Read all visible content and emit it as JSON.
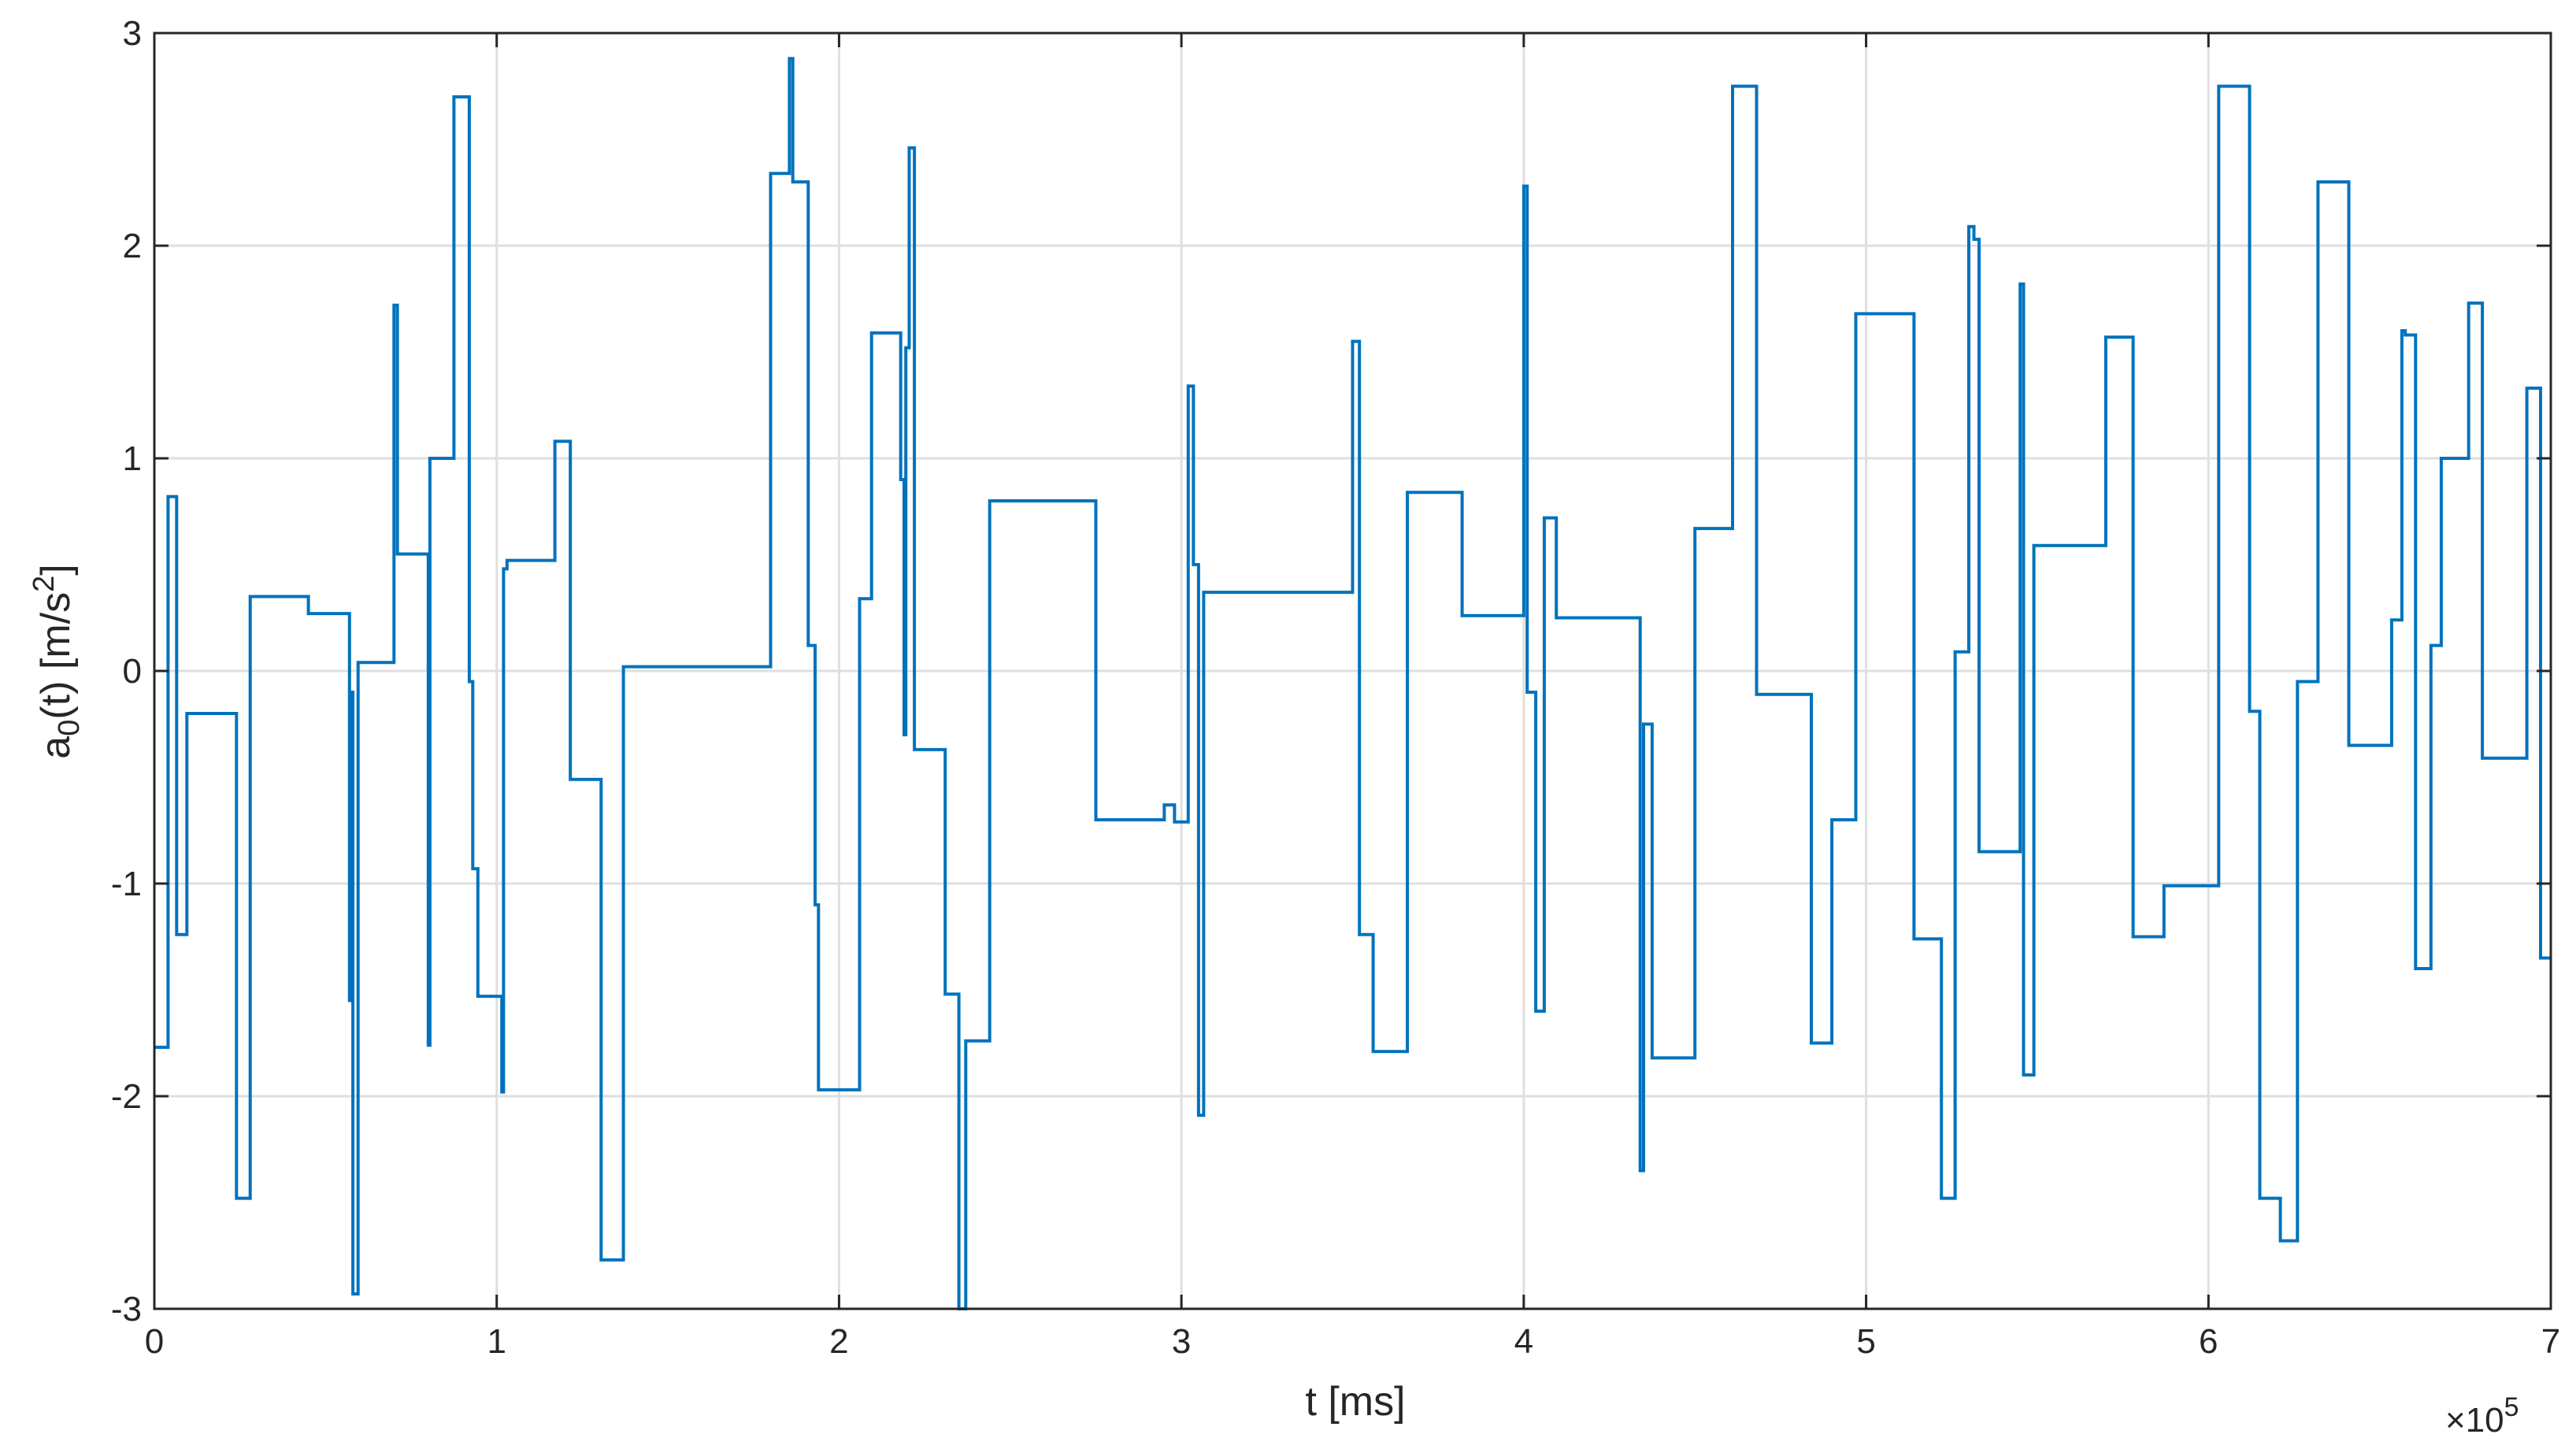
{
  "chart_data": {
    "type": "line",
    "step": true,
    "title": "",
    "xlabel": "t [ms]",
    "ylabel": "a",
    "ylabel_sub": "0",
    "ylabel_rest": "(t) [m/s",
    "ylabel_sup": "2",
    "ylabel_end": "]",
    "x_exponent_times": "×10",
    "x_exponent_power": "5",
    "xlim": [
      0,
      700000
    ],
    "ylim": [
      -3,
      3
    ],
    "grid": true,
    "legend": "none",
    "line_color": "#0072BD",
    "x_ticks": [
      0,
      100000,
      200000,
      300000,
      400000,
      500000,
      600000,
      700000
    ],
    "x_tick_labels": [
      "0",
      "1",
      "2",
      "3",
      "4",
      "5",
      "6",
      "7"
    ],
    "y_ticks": [
      -3,
      -2,
      -1,
      0,
      1,
      2,
      3
    ],
    "y_tick_labels": [
      "-3",
      "-2",
      "-1",
      "0",
      "1",
      "2",
      "3"
    ],
    "series": [
      {
        "x": [
          0,
          1500,
          4000,
          6500,
          9500,
          11000,
          24000,
          28000,
          30000,
          45000,
          57000,
          57500,
          58000,
          59500,
          61000,
          70000,
          71000,
          71500,
          72500,
          80000,
          80500,
          81500,
          87500,
          92000,
          93000,
          94500,
          101500,
          102000,
          103000,
          116500,
          117000,
          120500,
          121500,
          129500,
          130500,
          136500,
          137000,
          160000,
          180000,
          185000,
          185500,
          186500,
          188000,
          191000,
          192000,
          193000,
          194000,
          204000,
          206000,
          208000,
          209500,
          217000,
          218000,
          218500,
          219000,
          219500,
          220500,
          222000,
          223000,
          224000,
          231000,
          235000,
          237000,
          238000,
          244000,
          247000,
          275000,
          295000,
          298000,
          302000,
          303500,
          305000,
          306500,
          312000,
          350000,
          351000,
          352000,
          356000,
          366000,
          382000,
          385000,
          400000,
          401000,
          402500,
          403500,
          406000,
          409500,
          411500,
          416000,
          417000,
          434000,
          435000,
          437500,
          441000,
          450000,
          451000,
          461000,
          468000,
          484000,
          490000,
          497000,
          504000,
          514000,
          518000,
          522000,
          526000,
          528500,
          530000,
          531500,
          533000,
          537000,
          545000,
          546000,
          549000,
          551500,
          570000,
          578000,
          587000,
          597000,
          599500,
          603000,
          605000,
          612000,
          615000,
          619000,
          621000,
          622500,
          626000,
          632000,
          634500,
          641000,
          650000,
          653500,
          656500,
          657500,
          660500,
          661000,
          665000,
          665500,
          668000,
          676000,
          680000,
          684500,
          686500,
          693000,
          697000,
          700000
        ],
        "y": [
          -1.77,
          -1.77,
          0.82,
          -1.24,
          -0.2,
          -0.2,
          -2.48,
          0.35,
          0.35,
          0.27,
          -1.55,
          -0.1,
          -2.93,
          0.04,
          0.04,
          1.72,
          0.55,
          0.55,
          0.55,
          -1.76,
          1.0,
          1.0,
          2.7,
          -0.05,
          -0.93,
          -1.53,
          -1.98,
          0.48,
          0.52,
          0.52,
          1.08,
          1.08,
          -0.51,
          -0.51,
          -2.77,
          -2.77,
          0.02,
          0.02,
          2.34,
          2.34,
          2.88,
          2.3,
          2.3,
          0.12,
          0.12,
          -1.1,
          -1.97,
          -1.97,
          0.34,
          0.34,
          1.59,
          1.59,
          0.9,
          0.9,
          -0.3,
          1.52,
          2.46,
          -0.37,
          -0.37,
          -0.37,
          -1.52,
          -3.0,
          -1.74,
          -1.74,
          0.8,
          0.8,
          -0.7,
          -0.63,
          -0.71,
          1.34,
          0.5,
          -2.09,
          0.37,
          0.37,
          1.55,
          1.55,
          -1.24,
          -1.79,
          0.84,
          0.26,
          0.26,
          2.28,
          -0.1,
          -0.1,
          -1.6,
          0.72,
          0.25,
          0.25,
          0.25,
          0.25,
          -2.35,
          -0.25,
          -1.82,
          -1.82,
          0.67,
          0.67,
          2.75,
          -0.11,
          -1.75,
          -0.7,
          1.68,
          1.68,
          -1.26,
          -1.26,
          -2.48,
          0.09,
          0.09,
          2.09,
          2.03,
          -0.85,
          -0.85,
          1.82,
          -1.9,
          0.59,
          0.59,
          1.57,
          -1.25,
          -1.01,
          -1.01,
          -1.01,
          2.75,
          2.75,
          -0.19,
          -2.48,
          -2.48,
          -2.68,
          -2.68,
          -0.05,
          2.3,
          2.3,
          -0.35,
          -0.35,
          0.24,
          1.6,
          1.58,
          -1.4,
          -1.4,
          0.12,
          0.12,
          1.0,
          1.73,
          -0.41,
          -0.41,
          -0.41,
          1.33,
          -1.35,
          -1.35
        ]
      }
    ]
  }
}
